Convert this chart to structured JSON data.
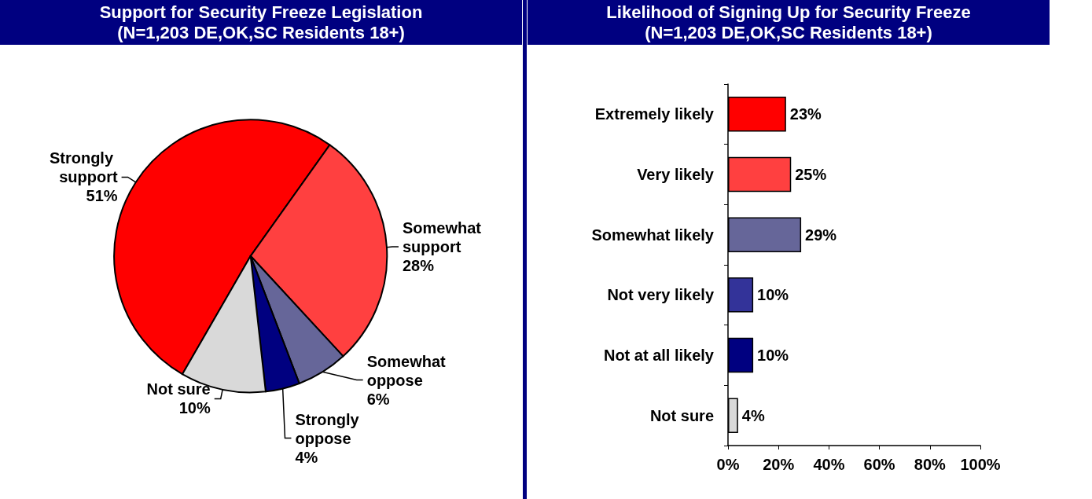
{
  "chart_data": [
    {
      "type": "pie",
      "title": "Support for Security Freeze Legislation",
      "subtitle": "(N=1,203 DE,OK,SC Residents 18+)",
      "categories": [
        "Strongly support",
        "Somewhat support",
        "Somewhat oppose",
        "Strongly oppose",
        "Not sure"
      ],
      "values": [
        51,
        28,
        6,
        4,
        10
      ],
      "colors": [
        "#ff0000",
        "#ff4040",
        "#666699",
        "#000080",
        "#d9d9d9"
      ],
      "value_labels": [
        "51%",
        "28%",
        "6%",
        "4%",
        "10%"
      ]
    },
    {
      "type": "bar",
      "orientation": "horizontal",
      "title": "Likelihood of Signing Up for Security Freeze",
      "subtitle": "(N=1,203 DE,OK,SC Residents 18+)",
      "categories": [
        "Extremely likely",
        "Very likely",
        "Somewhat likely",
        "Not very likely",
        "Not at all likely",
        "Not sure"
      ],
      "values": [
        23,
        25,
        29,
        10,
        10,
        4
      ],
      "colors": [
        "#ff0000",
        "#ff4040",
        "#666699",
        "#333399",
        "#000080",
        "#d9d9d9"
      ],
      "value_labels": [
        "23%",
        "25%",
        "29%",
        "10%",
        "10%",
        "4%"
      ],
      "xlim": [
        0,
        100
      ],
      "xticks": [
        {
          "value": 0,
          "label": "0%"
        },
        {
          "value": 20,
          "label": "20%"
        },
        {
          "value": 40,
          "label": "40%"
        },
        {
          "value": 60,
          "label": "60%"
        },
        {
          "value": 80,
          "label": "80%"
        },
        {
          "value": 100,
          "label": "100%"
        }
      ],
      "grid": false
    }
  ]
}
